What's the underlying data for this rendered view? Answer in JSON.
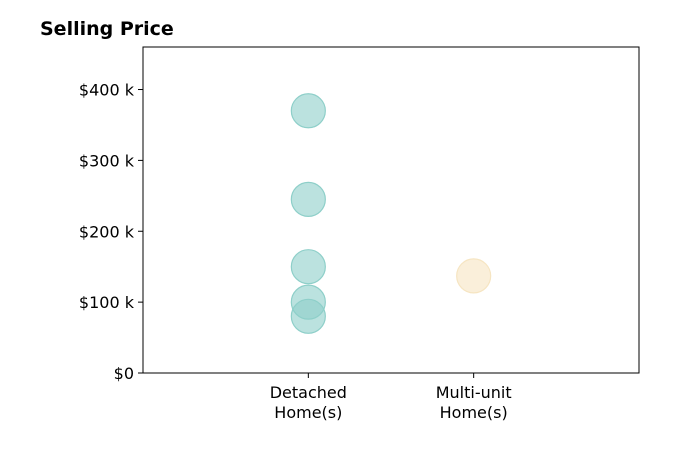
{
  "chart_data": {
    "type": "scatter",
    "title": "Selling Price",
    "xlabel": "",
    "ylabel": "",
    "categories": [
      [
        "Detached",
        "Home(s)"
      ],
      [
        "Multi-unit",
        "Home(s)"
      ]
    ],
    "ylim": [
      0,
      460000
    ],
    "yticks": [
      0,
      100000,
      200000,
      300000,
      400000
    ],
    "ytick_labels": [
      "$0",
      "$100 k",
      "$200 k",
      "$300 k",
      "$400 k"
    ],
    "grid": false,
    "series": [
      {
        "category_index": 0,
        "color": "#8ecfc9",
        "values": [
          370000,
          245000,
          150000,
          100000,
          80000
        ]
      },
      {
        "category_index": 1,
        "color": "#f6e5c2",
        "values": [
          137000
        ]
      }
    ]
  }
}
